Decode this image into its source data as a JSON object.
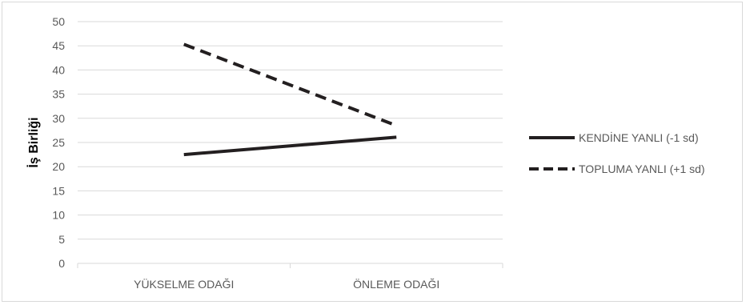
{
  "chart_data": {
    "type": "line",
    "title": "",
    "xlabel": "",
    "ylabel": "İş Birliği",
    "categories": [
      "YÜKSELME ODAĞI",
      "ÖNLEME ODAĞI"
    ],
    "ylim": [
      0,
      50
    ],
    "yticks": [
      0,
      5,
      10,
      15,
      20,
      25,
      30,
      35,
      40,
      45,
      50
    ],
    "grid": true,
    "legend_position": "right",
    "series": [
      {
        "name": "KENDİNE YANLI (-1 sd)",
        "values": [
          22.5,
          26.1
        ],
        "color": "#231f20",
        "style": "solid"
      },
      {
        "name": "TOPLUMA YANLI (+1 sd)",
        "values": [
          45.3,
          28.5
        ],
        "color": "#231f20",
        "style": "dashed"
      }
    ]
  },
  "colors": {
    "gridline": "#d9d9d9",
    "axis_text": "#595959",
    "series": "#231f20"
  }
}
